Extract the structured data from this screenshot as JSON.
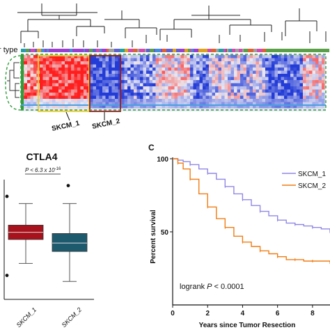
{
  "top_panel": {
    "row_label": "r type",
    "cluster_labels": [
      "SKCM_1",
      "SKCM_2"
    ]
  },
  "colors": {
    "red": "#d7191c",
    "blue": "#2b3fd6",
    "box1": "#a8121c",
    "box2": "#1e5a6e",
    "km1": "#8f87e6",
    "km2": "#f07c12",
    "dash_green": "#2e9e3a",
    "yellow": "#f0d020",
    "maroon": "#9b1b1b"
  },
  "chart_data": [
    {
      "type": "heatmap",
      "description_rows": "cluster heatmap with dendrogram",
      "highlight_labels": [
        "SKCM_1",
        "SKCM_2"
      ]
    },
    {
      "type": "box",
      "title": "CTLA4",
      "pvalue_text": "P < 6.3 x 10",
      "pvalue_exp": "-16",
      "categories": [
        "SKCM_1",
        "SKCM_2"
      ],
      "boxes": [
        {
          "name": "SKCM_1",
          "whisker_low": 0.3,
          "q1": 0.5,
          "median": 0.56,
          "q3": 0.62,
          "whisker_high": 0.8,
          "outliers": [
            0.2,
            0.86
          ]
        },
        {
          "name": "SKCM_2",
          "whisker_low": 0.15,
          "q1": 0.4,
          "median": 0.47,
          "q3": 0.55,
          "whisker_high": 0.8,
          "outliers": [
            0.95
          ]
        }
      ],
      "ylim": [
        0,
        1
      ]
    },
    {
      "type": "line",
      "panel_letter": "C",
      "xlabel": "Years since Tumor Resection",
      "ylabel": "Percent survival",
      "xticks": [
        0,
        2,
        4,
        6,
        8
      ],
      "yticks": [
        50,
        100
      ],
      "xlim": [
        0,
        9
      ],
      "ylim": [
        0,
        100
      ],
      "legend_placement": "top-right",
      "annotation_prefix": "logrank ",
      "annotation_p": "P",
      "annotation_suffix": " < 0.0001",
      "series": [
        {
          "name": "SKCM_1",
          "x": [
            0,
            0.3,
            0.6,
            1,
            1.5,
            2,
            2.5,
            3,
            3.5,
            4,
            4.5,
            5,
            5.5,
            6,
            6.5,
            7,
            7.5,
            8,
            8.5,
            9
          ],
          "y": [
            100,
            99,
            98,
            96,
            93,
            90,
            86,
            81,
            76,
            72,
            68,
            64,
            61,
            58,
            56,
            55,
            54,
            53,
            52,
            50
          ]
        },
        {
          "name": "SKCM_2",
          "x": [
            0,
            0.3,
            0.6,
            1,
            1.5,
            2,
            2.5,
            3,
            3.5,
            4,
            4.5,
            5,
            5.5,
            6,
            6.5,
            7,
            7.5,
            8,
            8.5,
            9
          ],
          "y": [
            100,
            97,
            93,
            86,
            76,
            67,
            59,
            53,
            47,
            43,
            40,
            37,
            35,
            33,
            31,
            31,
            30,
            30,
            30,
            29
          ]
        }
      ]
    }
  ]
}
